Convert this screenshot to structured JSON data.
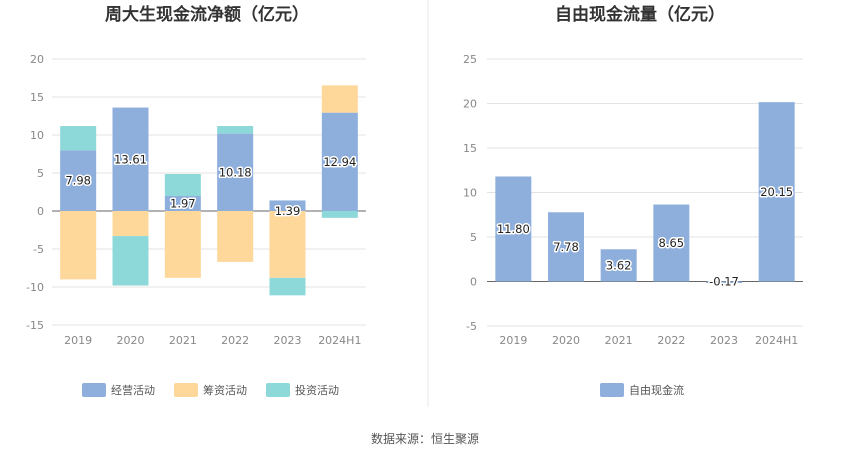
{
  "source": "数据来源：恒生聚源",
  "chart_data": [
    {
      "type": "bar",
      "stacked": true,
      "title": "周大生现金流净额（亿元）",
      "categories": [
        "2019",
        "2020",
        "2021",
        "2022",
        "2023",
        "2024H1"
      ],
      "ylim": [
        -15,
        20
      ],
      "yticks": [
        -15,
        -10,
        -5,
        0,
        5,
        10,
        15,
        20
      ],
      "grid": true,
      "legend_position": "bottom",
      "series": [
        {
          "name": "经营活动",
          "color": "#8eaedc",
          "values": [
            7.98,
            13.61,
            1.97,
            10.18,
            1.39,
            12.94
          ]
        },
        {
          "name": "筹资活动",
          "color": "#fed89b",
          "values": [
            -9.0,
            -3.3,
            -8.8,
            -6.7,
            -8.8,
            3.6
          ]
        },
        {
          "name": "投资活动",
          "color": "#8dd8d8",
          "values": [
            3.2,
            -6.5,
            2.9,
            1.0,
            -2.3,
            -0.9
          ]
        }
      ],
      "data_labels": [
        "7.98",
        "13.61",
        "1.97",
        "10.18",
        "1.39",
        "12.94"
      ]
    },
    {
      "type": "bar",
      "title": "自由现金流量（亿元）",
      "categories": [
        "2019",
        "2020",
        "2021",
        "2022",
        "2023",
        "2024H1"
      ],
      "ylim": [
        -5,
        25
      ],
      "yticks": [
        -5,
        0,
        5,
        10,
        15,
        20,
        25
      ],
      "grid": true,
      "legend_position": "bottom",
      "series": [
        {
          "name": "自由现金流",
          "color": "#8eaedc",
          "values": [
            11.8,
            7.78,
            3.62,
            8.65,
            -0.17,
            20.15
          ]
        }
      ],
      "data_labels": [
        "11.80",
        "7.78",
        "3.62",
        "8.65",
        "-0.17",
        "20.15"
      ]
    }
  ]
}
